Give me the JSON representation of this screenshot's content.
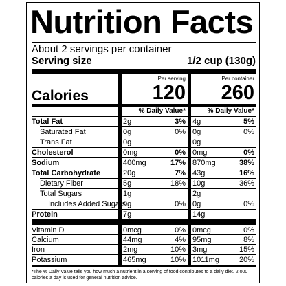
{
  "header": {
    "title": "Nutrition Facts",
    "servings": "About 2 servings per container",
    "serving_size_label": "Serving size",
    "serving_size": "1/2 cup (130g)"
  },
  "columns": {
    "per_serving": "Per serving",
    "per_container": "Per container"
  },
  "calories": {
    "label": "Calories",
    "per_serving": "120",
    "per_container": "260"
  },
  "daily_value_header": [
    "% Daily Value*",
    "% Daily Value*"
  ],
  "nutrients": [
    {
      "name": "Total Fat",
      "serving_amount": "2g",
      "serving_dv": "3%",
      "container_amount": "4g",
      "container_dv": "5%"
    },
    {
      "name": "Saturated Fat",
      "serving_amount": "0g",
      "serving_dv": "0%",
      "container_amount": "0g",
      "container_dv": "0%"
    },
    {
      "name": "Trans Fat",
      "serving_amount": "0g",
      "container_amount": "0g"
    },
    {
      "name": "Cholesterol",
      "serving_amount": "0mg",
      "serving_dv": "0%",
      "container_amount": "0mg",
      "container_dv": "0%"
    },
    {
      "name": "Sodium",
      "serving_amount": "400mg",
      "serving_dv": "17%",
      "container_amount": "870mg",
      "container_dv": "38%"
    },
    {
      "name": "Total Carbohydrate",
      "serving_amount": "20g",
      "serving_dv": "7%",
      "container_amount": "43g",
      "container_dv": "16%"
    },
    {
      "name": "Dietary Fiber",
      "serving_amount": "5g",
      "serving_dv": "18%",
      "container_amount": "10g",
      "container_dv": "36%"
    },
    {
      "name": "Total Sugars",
      "serving_amount": "1g",
      "container_amount": "2g"
    },
    {
      "name": "Includes Added Sugars",
      "serving_amount": "0g",
      "serving_dv": "0%",
      "container_amount": "0g",
      "container_dv": "0%"
    },
    {
      "name": "Protein",
      "serving_amount": "7g",
      "container_amount": "14g"
    }
  ],
  "micronutrients": [
    {
      "name": "Vitamin D",
      "serving_amount": "0mcg",
      "serving_dv": "0%",
      "container_amount": "0mcg",
      "container_dv": "0%"
    },
    {
      "name": "Calcium",
      "serving_amount": "44mg",
      "serving_dv": "4%",
      "container_amount": "95mg",
      "container_dv": "8%"
    },
    {
      "name": "Iron",
      "serving_amount": "2mg",
      "serving_dv": "10%",
      "container_amount": "3mg",
      "container_dv": "15%"
    },
    {
      "name": "Potassium",
      "serving_amount": "465mg",
      "serving_dv": "10%",
      "container_amount": "1011mg",
      "container_dv": "20%"
    }
  ],
  "footnote": "*The % Daily Value tells you how much a nutrient in a serving of food contributes to a daily diet. 2,000 calories a day is used for general nutrition advice."
}
